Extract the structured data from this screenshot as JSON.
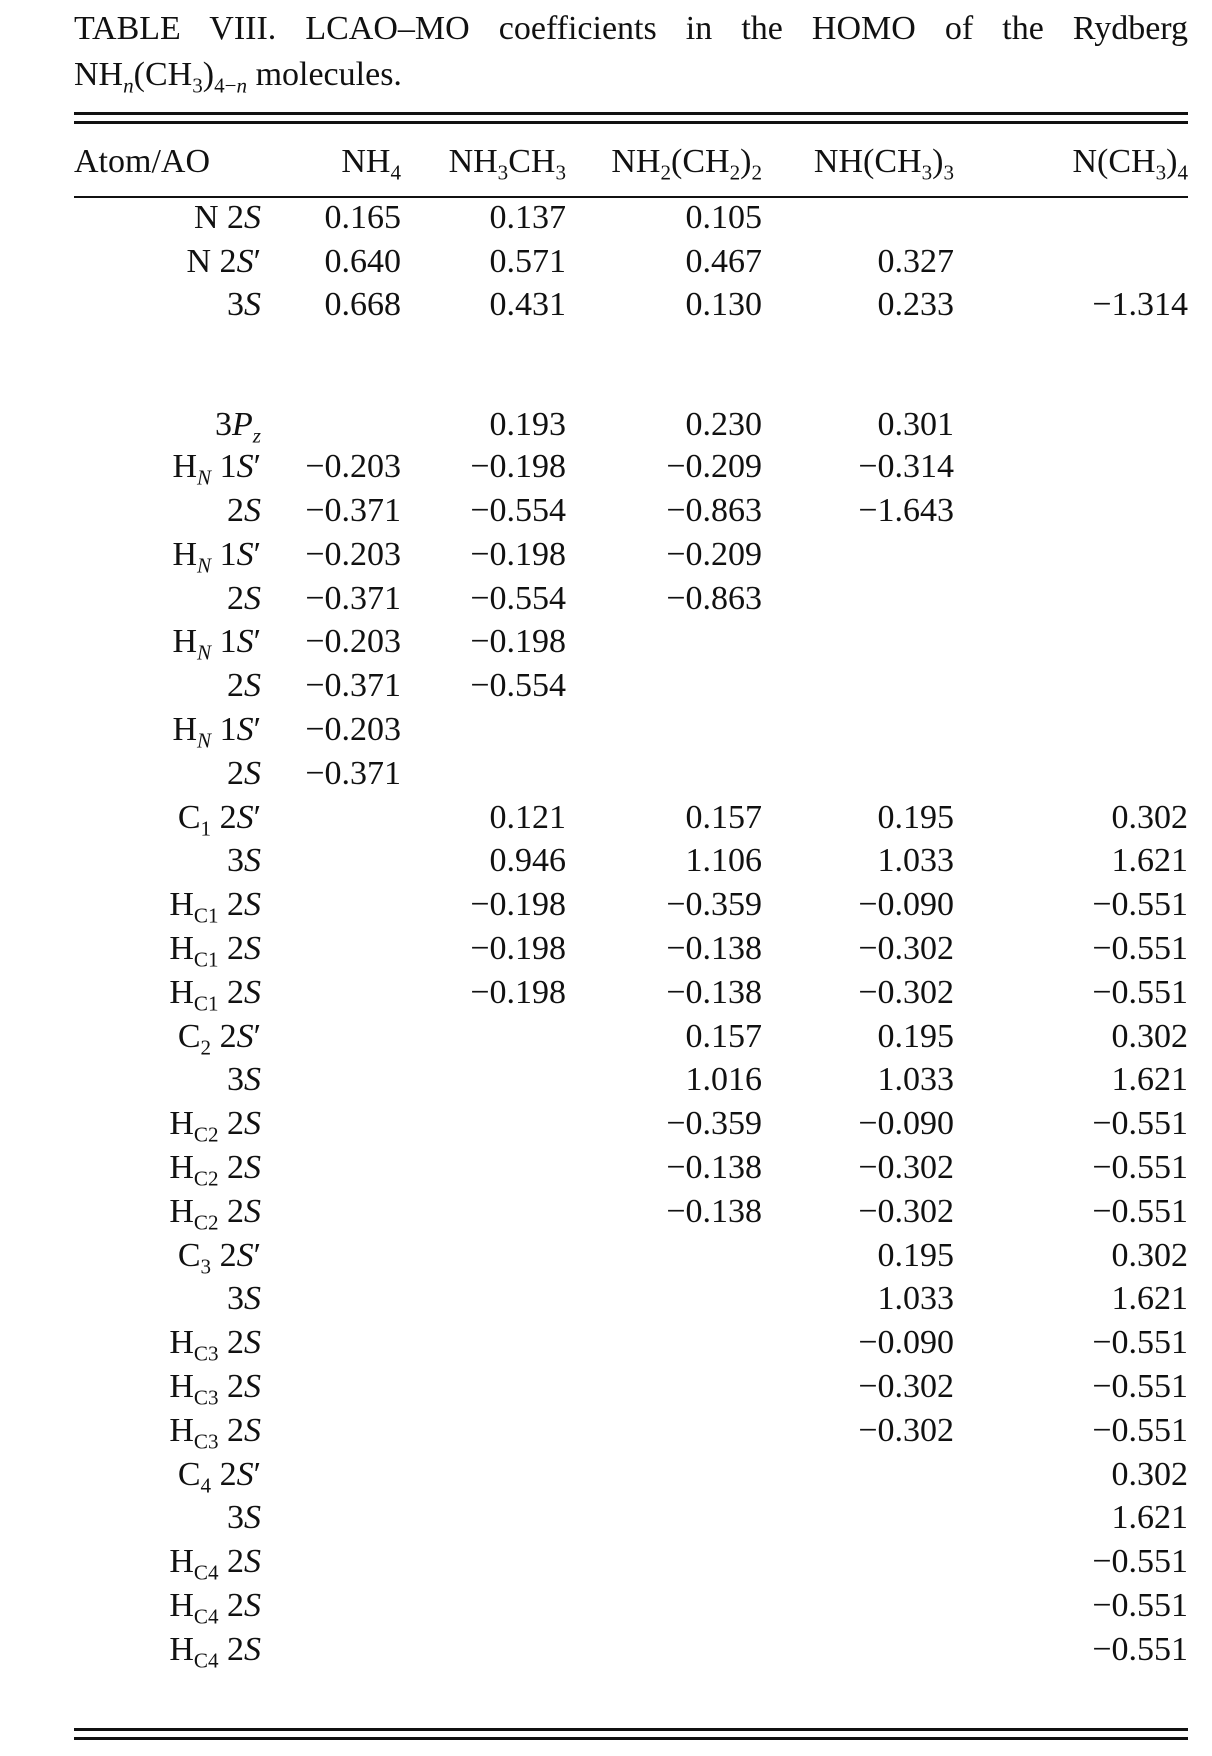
{
  "caption_line1": "TABLE VIII. LCAO–MO coefficients in the HOMO of the Rydberg",
  "caption_line2": "NHn(CH3)4−n molecules.",
  "header": {
    "atom_ao": "Atom/AO",
    "cols": [
      "NH4",
      "NH3CH3",
      "NH2(CH2)2",
      "NH(CH3)3",
      "N(CH3)4"
    ]
  },
  "rows": [
    {
      "atom": "N 2S",
      "v": [
        "0.165",
        "0.137",
        "0.105",
        "",
        ""
      ]
    },
    {
      "atom": "N 2S′",
      "v": [
        "0.640",
        "0.571",
        "0.467",
        "0.327",
        ""
      ]
    },
    {
      "atom": "3S",
      "v": [
        "0.668",
        "0.431",
        "0.130",
        "0.233",
        "−1.314"
      ]
    },
    {
      "atom": "3Pz",
      "v": [
        "",
        "0.193",
        "0.230",
        "0.301",
        ""
      ],
      "gap": true
    },
    {
      "atom": "HN 1S′",
      "v": [
        "−0.203",
        "−0.198",
        "−0.209",
        "−0.314",
        ""
      ]
    },
    {
      "atom": "2S",
      "v": [
        "−0.371",
        "−0.554",
        "−0.863",
        "−1.643",
        ""
      ]
    },
    {
      "atom": "HN 1S′",
      "v": [
        "−0.203",
        "−0.198",
        "−0.209",
        "",
        ""
      ]
    },
    {
      "atom": "2S",
      "v": [
        "−0.371",
        "−0.554",
        "−0.863",
        "",
        ""
      ]
    },
    {
      "atom": "HN 1S′",
      "v": [
        "−0.203",
        "−0.198",
        "",
        "",
        ""
      ]
    },
    {
      "atom": "2S",
      "v": [
        "−0.371",
        "−0.554",
        "",
        "",
        ""
      ]
    },
    {
      "atom": "HN 1S′",
      "v": [
        "−0.203",
        "",
        "",
        "",
        ""
      ]
    },
    {
      "atom": "2S",
      "v": [
        "−0.371",
        "",
        "",
        "",
        ""
      ]
    },
    {
      "atom": "C1 2S′",
      "v": [
        "",
        "0.121",
        "0.157",
        "0.195",
        "0.302"
      ]
    },
    {
      "atom": "3S",
      "v": [
        "",
        "0.946",
        "1.106",
        "1.033",
        "1.621"
      ]
    },
    {
      "atom": "HC1 2S",
      "v": [
        "",
        "−0.198",
        "−0.359",
        "−0.090",
        "−0.551"
      ]
    },
    {
      "atom": "HC1 2S",
      "v": [
        "",
        "−0.198",
        "−0.138",
        "−0.302",
        "−0.551"
      ]
    },
    {
      "atom": "HC1 2S",
      "v": [
        "",
        "−0.198",
        "−0.138",
        "−0.302",
        "−0.551"
      ]
    },
    {
      "atom": "C2 2S′",
      "v": [
        "",
        "",
        "0.157",
        "0.195",
        "0.302"
      ]
    },
    {
      "atom": "3S",
      "v": [
        "",
        "",
        "1.016",
        "1.033",
        "1.621"
      ]
    },
    {
      "atom": "HC2 2S",
      "v": [
        "",
        "",
        "−0.359",
        "−0.090",
        "−0.551"
      ]
    },
    {
      "atom": "HC2 2S",
      "v": [
        "",
        "",
        "−0.138",
        "−0.302",
        "−0.551"
      ]
    },
    {
      "atom": "HC2 2S",
      "v": [
        "",
        "",
        "−0.138",
        "−0.302",
        "−0.551"
      ]
    },
    {
      "atom": "C3 2S′",
      "v": [
        "",
        "",
        "",
        "0.195",
        "0.302"
      ]
    },
    {
      "atom": "3S",
      "v": [
        "",
        "",
        "",
        "1.033",
        "1.621"
      ]
    },
    {
      "atom": "HC3 2S",
      "v": [
        "",
        "",
        "",
        "−0.090",
        "−0.551"
      ]
    },
    {
      "atom": "HC3 2S",
      "v": [
        "",
        "",
        "",
        "−0.302",
        "−0.551"
      ]
    },
    {
      "atom": "HC3 2S",
      "v": [
        "",
        "",
        "",
        "−0.302",
        "−0.551"
      ]
    },
    {
      "atom": "C4 2S′",
      "v": [
        "",
        "",
        "",
        "",
        "0.302"
      ]
    },
    {
      "atom": "3S",
      "v": [
        "",
        "",
        "",
        "",
        "1.621"
      ]
    },
    {
      "atom": "HC4 2S",
      "v": [
        "",
        "",
        "",
        "",
        "−0.551"
      ]
    },
    {
      "atom": "HC4 2S",
      "v": [
        "",
        "",
        "",
        "",
        "−0.551"
      ]
    },
    {
      "atom": "HC4 2S",
      "v": [
        "",
        "",
        "",
        "",
        "−0.551"
      ]
    }
  ]
}
